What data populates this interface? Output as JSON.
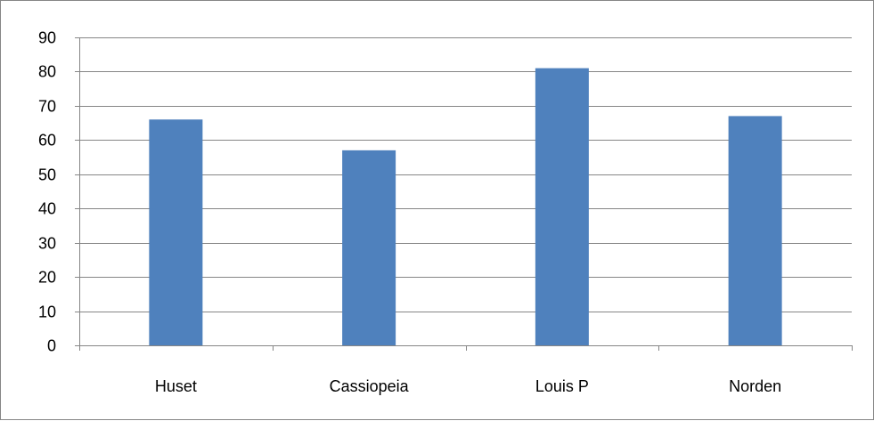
{
  "chart_data": {
    "type": "bar",
    "categories": [
      "Huset",
      "Cassiopeia",
      "Louis P",
      "Norden"
    ],
    "values": [
      66,
      57,
      81,
      67
    ],
    "title": "",
    "xlabel": "",
    "ylabel": "",
    "ylim": [
      0,
      90
    ],
    "yticks": [
      "0",
      "10",
      "20",
      "30",
      "40",
      "50",
      "60",
      "70",
      "80",
      "90"
    ],
    "grid": true,
    "legend": "none",
    "bar_color": "#4F81BD",
    "grid_color": "#868686"
  }
}
